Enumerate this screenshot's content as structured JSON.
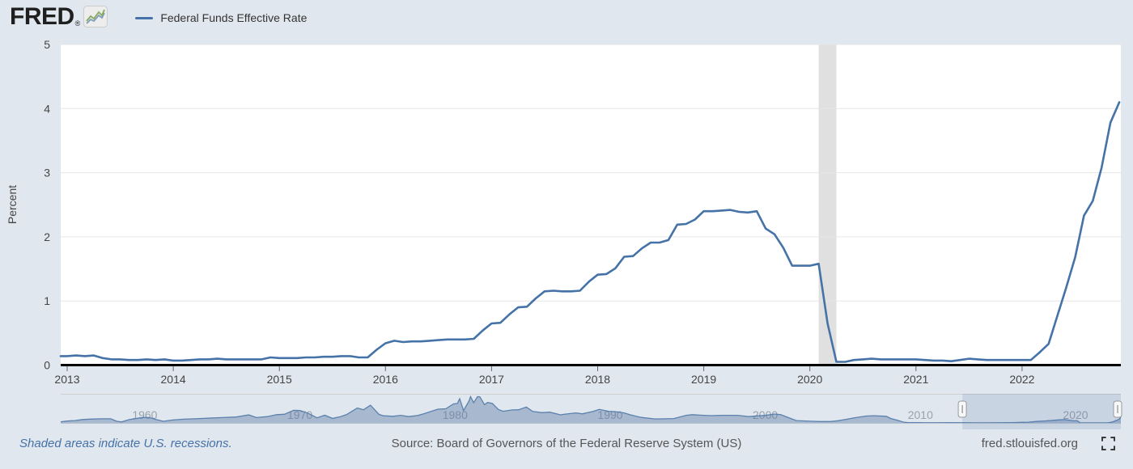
{
  "header": {
    "logo_text": "FRED",
    "logo_registered": "®",
    "legend": {
      "label": "Federal Funds Effective Rate"
    }
  },
  "colors": {
    "page_bg": "#e1e7ee",
    "line": "#4572a7",
    "axis_text": "#444444",
    "gridline": "#e6e6e6",
    "plot_bg": "#ffffff",
    "baseline": "#000000",
    "recession_band": "#e0e0e0",
    "overview_fill": "rgba(88,120,165,0.42)",
    "overview_line": "#5b82ae",
    "overview_label": "#9aa2ac",
    "selection_fill": "rgba(70,110,170,0.15)",
    "footer_link": "#4572a7",
    "footer_text": "#555555"
  },
  "chart_data": [
    {
      "type": "line",
      "title": "Federal Funds Effective Rate",
      "xlabel": "",
      "ylabel": "Percent",
      "ylim": [
        0,
        5
      ],
      "yticks": [
        0,
        1,
        2,
        3,
        4,
        5
      ],
      "xticks": [
        2013,
        2014,
        2015,
        2016,
        2017,
        2018,
        2019,
        2020,
        2021,
        2022
      ],
      "xlim": [
        2012.94,
        2022.95
      ],
      "grid": "horizontal",
      "legend_position": "top-left-header",
      "x_start_year": 2013,
      "x_interval": "monthly",
      "recession_bands": [
        {
          "start": 2020.083,
          "end": 2020.25
        }
      ],
      "series": [
        {
          "name": "Federal Funds Effective Rate",
          "units": "percent",
          "values": [
            0.14,
            0.15,
            0.14,
            0.15,
            0.11,
            0.09,
            0.09,
            0.08,
            0.08,
            0.09,
            0.08,
            0.09,
            0.07,
            0.07,
            0.08,
            0.09,
            0.09,
            0.1,
            0.09,
            0.09,
            0.09,
            0.09,
            0.09,
            0.12,
            0.11,
            0.11,
            0.11,
            0.12,
            0.12,
            0.13,
            0.13,
            0.14,
            0.14,
            0.12,
            0.12,
            0.24,
            0.34,
            0.38,
            0.36,
            0.37,
            0.37,
            0.38,
            0.39,
            0.4,
            0.4,
            0.4,
            0.41,
            0.54,
            0.65,
            0.66,
            0.79,
            0.9,
            0.91,
            1.04,
            1.15,
            1.16,
            1.15,
            1.15,
            1.16,
            1.3,
            1.41,
            1.42,
            1.51,
            1.69,
            1.7,
            1.82,
            1.91,
            1.91,
            1.95,
            2.19,
            2.2,
            2.27,
            2.4,
            2.4,
            2.41,
            2.42,
            2.39,
            2.38,
            2.4,
            2.13,
            2.04,
            1.83,
            1.55,
            1.55,
            1.55,
            1.58,
            0.65,
            0.05,
            0.05,
            0.08,
            0.09,
            0.1,
            0.09,
            0.09,
            0.09,
            0.09,
            0.09,
            0.08,
            0.07,
            0.07,
            0.06,
            0.08,
            0.1,
            0.09,
            0.08,
            0.08,
            0.08,
            0.08,
            0.08,
            0.08,
            0.2,
            0.33,
            0.77,
            1.21,
            1.68,
            2.33,
            2.56,
            3.08,
            3.78,
            4.1
          ]
        }
      ]
    },
    {
      "type": "area",
      "role": "range-selector-overview",
      "x_range": [
        1954.58,
        2022.92
      ],
      "ylim": [
        0,
        20
      ],
      "decade_labels": [
        1960,
        1970,
        1980,
        1990,
        2000,
        2010,
        2020
      ],
      "selection": {
        "start_year": 2012.7,
        "end_year": 2022.92
      },
      "series": [
        [
          1954.6,
          0.85
        ],
        [
          1955.0,
          1.35
        ],
        [
          1955.5,
          1.7
        ],
        [
          1956.0,
          2.5
        ],
        [
          1956.5,
          2.75
        ],
        [
          1957.2,
          3.0
        ],
        [
          1957.8,
          3.0
        ],
        [
          1958.2,
          1.2
        ],
        [
          1958.5,
          0.7
        ],
        [
          1959.0,
          2.4
        ],
        [
          1959.9,
          4.0
        ],
        [
          1960.3,
          3.9
        ],
        [
          1960.8,
          2.3
        ],
        [
          1961.2,
          1.2
        ],
        [
          1961.8,
          2.1
        ],
        [
          1962.5,
          2.7
        ],
        [
          1963.2,
          3.0
        ],
        [
          1964.0,
          3.4
        ],
        [
          1965.0,
          3.9
        ],
        [
          1965.9,
          4.3
        ],
        [
          1966.7,
          5.8
        ],
        [
          1967.2,
          3.9
        ],
        [
          1967.9,
          4.6
        ],
        [
          1968.5,
          6.0
        ],
        [
          1969.0,
          6.3
        ],
        [
          1969.6,
          9.2
        ],
        [
          1970.0,
          9.0
        ],
        [
          1970.5,
          7.2
        ],
        [
          1971.1,
          3.7
        ],
        [
          1971.6,
          5.6
        ],
        [
          1972.1,
          3.3
        ],
        [
          1972.6,
          4.5
        ],
        [
          1973.0,
          6.0
        ],
        [
          1973.7,
          10.8
        ],
        [
          1974.1,
          9.6
        ],
        [
          1974.55,
          12.9
        ],
        [
          1975.1,
          6.2
        ],
        [
          1975.4,
          5.2
        ],
        [
          1976.0,
          4.8
        ],
        [
          1976.5,
          5.5
        ],
        [
          1977.0,
          4.6
        ],
        [
          1977.6,
          5.4
        ],
        [
          1978.0,
          6.7
        ],
        [
          1978.9,
          10.0
        ],
        [
          1979.4,
          10.3
        ],
        [
          1979.9,
          13.8
        ],
        [
          1980.15,
          14.1
        ],
        [
          1980.3,
          17.6
        ],
        [
          1980.55,
          9.0
        ],
        [
          1980.9,
          15.9
        ],
        [
          1981.0,
          19.1
        ],
        [
          1981.2,
          14.7
        ],
        [
          1981.45,
          19.1
        ],
        [
          1981.6,
          19.0
        ],
        [
          1981.9,
          13.3
        ],
        [
          1982.1,
          14.9
        ],
        [
          1982.4,
          14.2
        ],
        [
          1982.8,
          9.7
        ],
        [
          1983.1,
          8.5
        ],
        [
          1983.7,
          9.5
        ],
        [
          1984.1,
          9.6
        ],
        [
          1984.6,
          11.6
        ],
        [
          1985.0,
          8.35
        ],
        [
          1985.6,
          7.5
        ],
        [
          1986.1,
          7.8
        ],
        [
          1986.8,
          5.9
        ],
        [
          1987.1,
          6.4
        ],
        [
          1987.8,
          7.3
        ],
        [
          1988.2,
          6.6
        ],
        [
          1988.9,
          8.4
        ],
        [
          1989.3,
          9.85
        ],
        [
          1989.9,
          8.5
        ],
        [
          1990.3,
          8.25
        ],
        [
          1990.9,
          7.3
        ],
        [
          1991.3,
          5.9
        ],
        [
          1992.0,
          4.0
        ],
        [
          1992.9,
          2.9
        ],
        [
          1993.5,
          3.0
        ],
        [
          1994.1,
          3.2
        ],
        [
          1994.9,
          5.5
        ],
        [
          1995.3,
          6.0
        ],
        [
          1995.9,
          5.6
        ],
        [
          1996.5,
          5.3
        ],
        [
          1997.3,
          5.5
        ],
        [
          1998.2,
          5.5
        ],
        [
          1998.95,
          4.6
        ],
        [
          1999.5,
          5.1
        ],
        [
          2000.0,
          5.45
        ],
        [
          2000.6,
          6.5
        ],
        [
          2001.0,
          5.98
        ],
        [
          2001.5,
          3.8
        ],
        [
          2002.0,
          1.73
        ],
        [
          2002.9,
          1.24
        ],
        [
          2003.5,
          1.0
        ],
        [
          2004.2,
          1.0
        ],
        [
          2004.7,
          1.6
        ],
        [
          2005.2,
          2.6
        ],
        [
          2005.8,
          3.8
        ],
        [
          2006.5,
          5.0
        ],
        [
          2007.0,
          5.25
        ],
        [
          2007.8,
          4.8
        ],
        [
          2008.1,
          3.2
        ],
        [
          2008.5,
          2.0
        ],
        [
          2008.9,
          0.6
        ],
        [
          2009.2,
          0.15
        ],
        [
          2010.0,
          0.15
        ],
        [
          2011.0,
          0.1
        ],
        [
          2012.0,
          0.15
        ],
        [
          2013.0,
          0.14
        ],
        [
          2014.0,
          0.08
        ],
        [
          2015.0,
          0.12
        ],
        [
          2015.95,
          0.24
        ],
        [
          2016.5,
          0.39
        ],
        [
          2016.95,
          0.54
        ],
        [
          2017.5,
          1.05
        ],
        [
          2018.0,
          1.41
        ],
        [
          2018.9,
          2.2
        ],
        [
          2019.3,
          2.4
        ],
        [
          2019.9,
          1.55
        ],
        [
          2020.1,
          1.58
        ],
        [
          2020.3,
          0.05
        ],
        [
          2021.0,
          0.08
        ],
        [
          2022.1,
          0.08
        ],
        [
          2022.4,
          0.77
        ],
        [
          2022.6,
          1.68
        ],
        [
          2022.8,
          2.56
        ],
        [
          2022.92,
          4.1
        ]
      ]
    }
  ],
  "footer": {
    "recession_note": "Shaded areas indicate U.S. recessions.",
    "source": "Source: Board of Governors of the Federal Reserve System (US)",
    "site": "fred.stlouisfed.org"
  }
}
